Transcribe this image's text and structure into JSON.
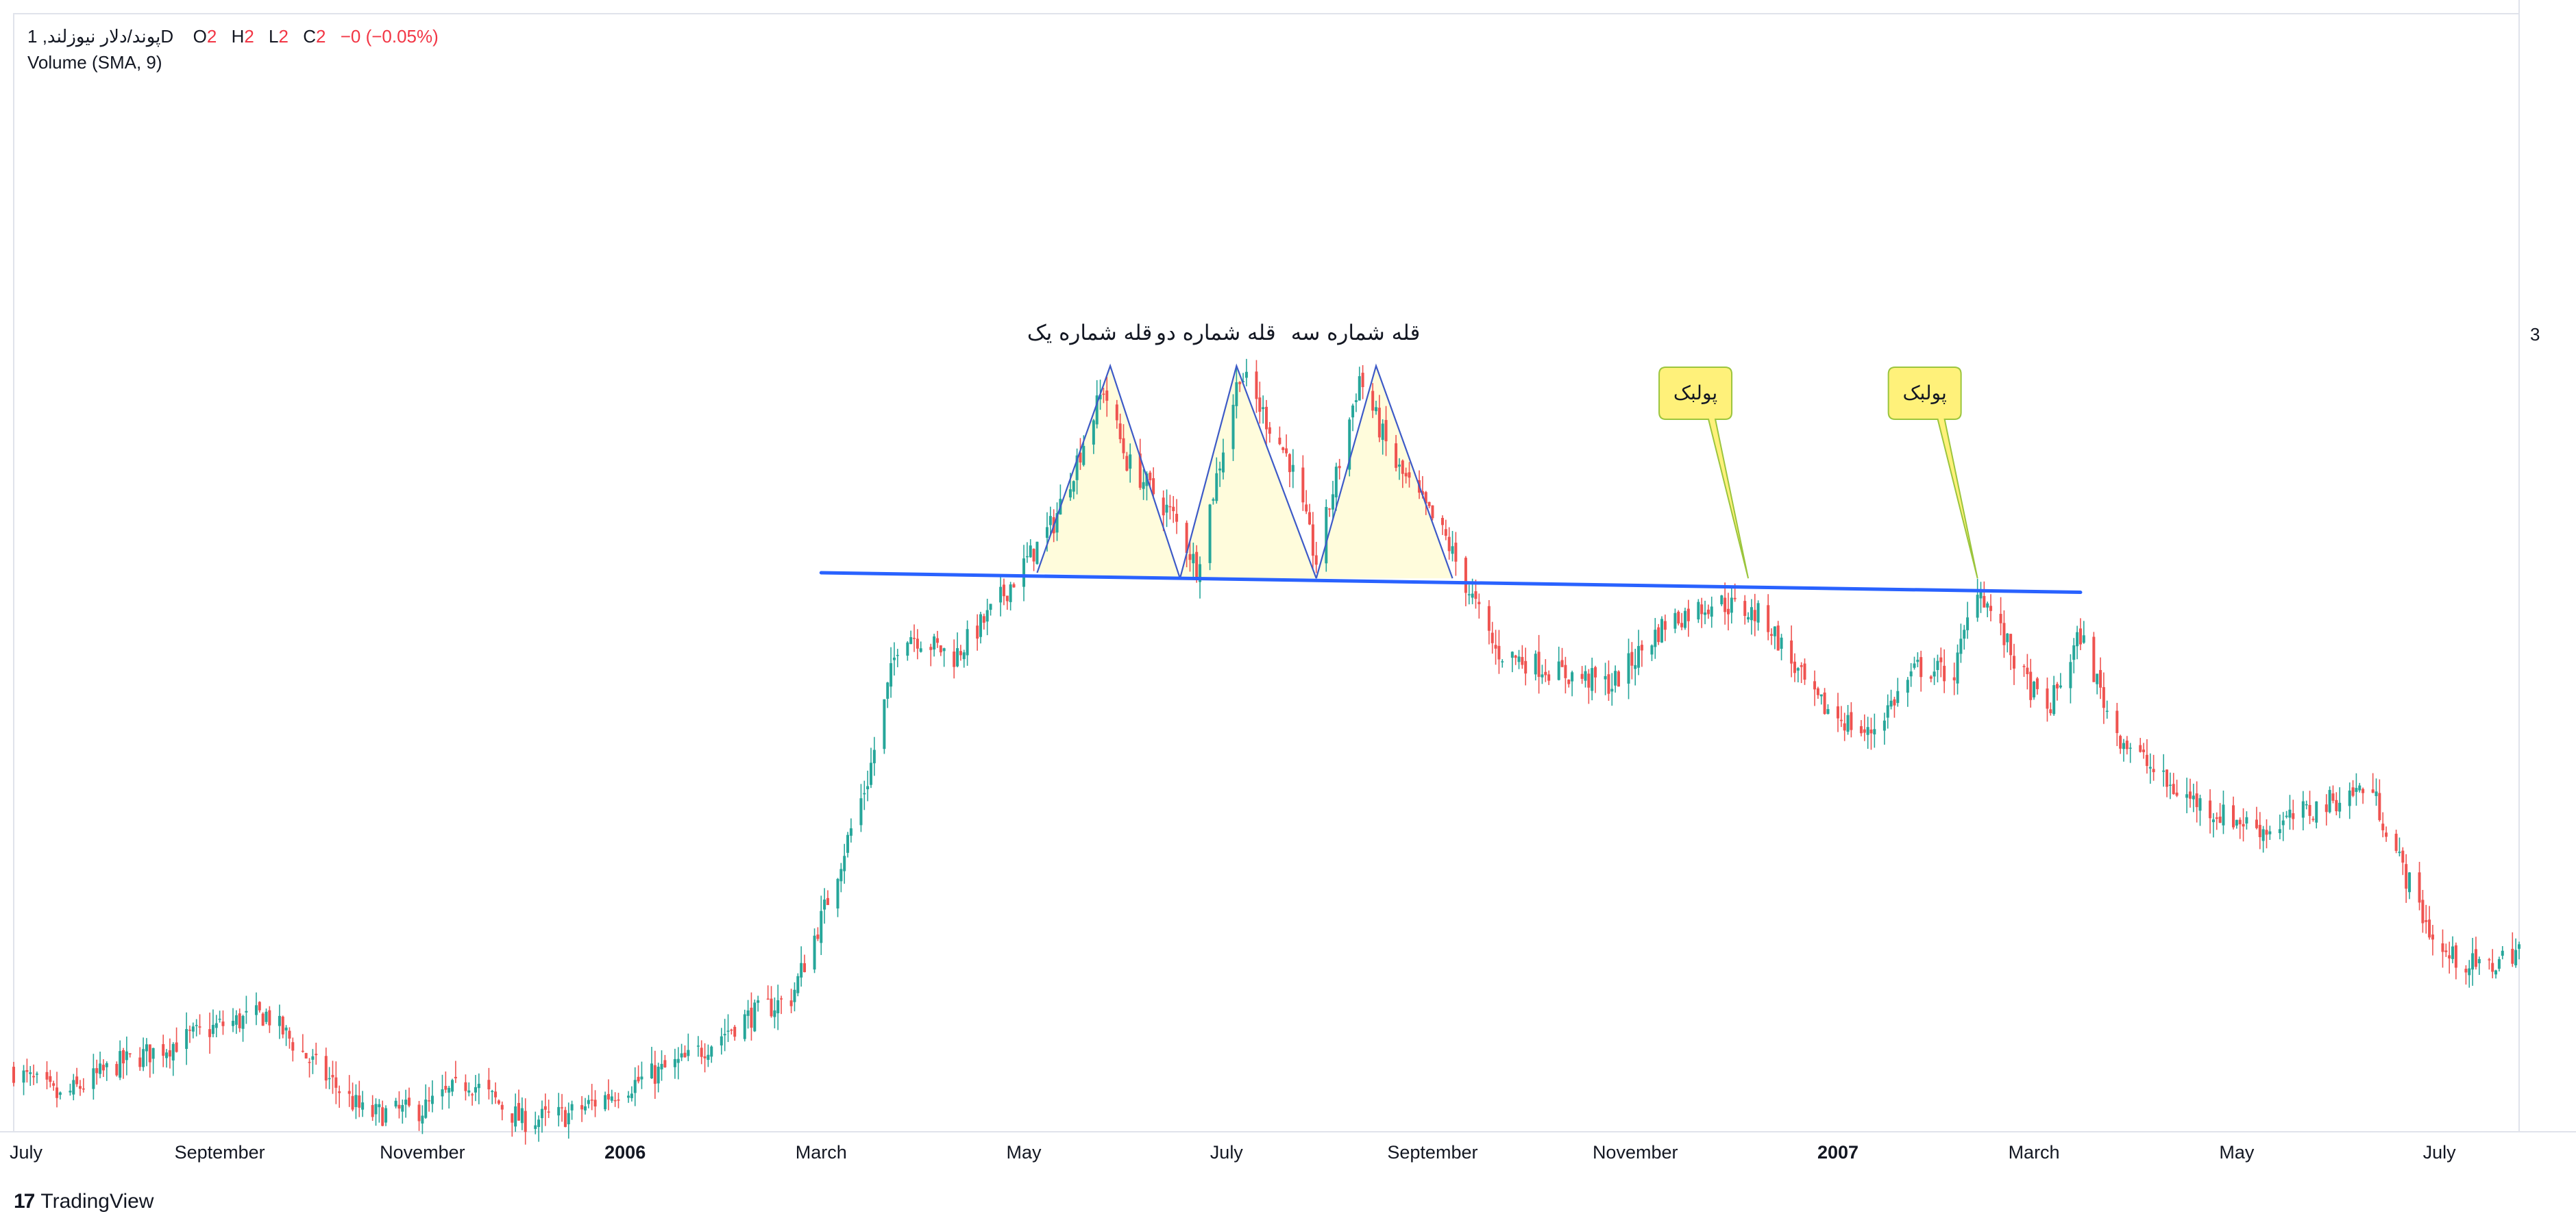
{
  "header": {
    "symbol_line": "پوند/دلار نیوزلند, 1D",
    "open_label": "O",
    "open_value": "2",
    "high_label": "H",
    "high_value": "2",
    "low_label": "L",
    "low_value": "2",
    "close_label": "C",
    "close_value": "2",
    "change": "−0 (−0.05%)",
    "indicator": "Volume (SMA, 9)"
  },
  "price_scale": {
    "label": "3"
  },
  "branding": {
    "logo": "17",
    "name": "TradingView"
  },
  "colors": {
    "up": "#26a69a",
    "down": "#ef5350",
    "neckline": "#2962ff",
    "pattern_line": "#3d5ac7",
    "pattern_fill": "#fffbd6",
    "callout_fill": "#fff17a",
    "callout_border": "#9bc53d"
  },
  "annotations": {
    "peak_1": "قله شماره یک",
    "peak_2": "قله شماره دو",
    "peak_3": "قله شماره سه",
    "pullback_1": "پولبک",
    "pullback_2": "پولبک"
  },
  "chart_data": {
    "type": "candlestick",
    "title": "پوند/دلار نیوزلند, 1D",
    "interval": "1D",
    "x_range": [
      "2005-07-01",
      "2007-07-25"
    ],
    "y_range": [
      1.0,
      3.0
    ],
    "x_tick_labels": [
      {
        "date": "2005-07-01",
        "label": "July"
      },
      {
        "date": "2005-09-01",
        "label": "September"
      },
      {
        "date": "2005-11-01",
        "label": "November"
      },
      {
        "date": "2006-01-01",
        "label": "2006",
        "bold": true
      },
      {
        "date": "2006-03-01",
        "label": "March"
      },
      {
        "date": "2006-05-01",
        "label": "May"
      },
      {
        "date": "2006-07-01",
        "label": "July"
      },
      {
        "date": "2006-09-01",
        "label": "September"
      },
      {
        "date": "2006-11-01",
        "label": "November"
      },
      {
        "date": "2007-01-01",
        "label": "2007",
        "bold": true
      },
      {
        "date": "2007-03-01",
        "label": "March"
      },
      {
        "date": "2007-05-01",
        "label": "May"
      },
      {
        "date": "2007-07-01",
        "label": "July"
      }
    ],
    "y_tick_labels": [
      {
        "value": 3,
        "label": "3"
      }
    ],
    "price_path": [
      [
        "2005-07-01",
        1.11
      ],
      [
        "2005-07-15",
        1.06
      ],
      [
        "2005-08-01",
        1.12
      ],
      [
        "2005-08-15",
        1.15
      ],
      [
        "2005-09-01",
        1.19
      ],
      [
        "2005-09-15",
        1.21
      ],
      [
        "2005-10-01",
        1.11
      ],
      [
        "2005-10-15",
        1.03
      ],
      [
        "2005-11-01",
        1.04
      ],
      [
        "2005-11-15",
        1.09
      ],
      [
        "2005-12-01",
        1.02
      ],
      [
        "2005-12-15",
        1.03
      ],
      [
        "2006-01-01",
        1.08
      ],
      [
        "2006-01-20",
        1.13
      ],
      [
        "2006-02-05",
        1.2
      ],
      [
        "2006-02-20",
        1.24
      ],
      [
        "2006-03-01",
        1.38
      ],
      [
        "2006-03-15",
        1.63
      ],
      [
        "2006-03-25",
        1.9
      ],
      [
        "2006-04-10",
        1.85
      ],
      [
        "2006-04-20",
        1.92
      ],
      [
        "2006-05-10",
        2.09
      ],
      [
        "2006-05-25",
        2.33
      ],
      [
        "2006-06-01",
        2.2
      ],
      [
        "2006-06-15",
        2.1
      ],
      [
        "2006-06-22",
        2.01
      ],
      [
        "2006-07-05",
        2.36
      ],
      [
        "2006-07-20",
        2.2
      ],
      [
        "2006-07-28",
        2.02
      ],
      [
        "2006-08-10",
        2.35
      ],
      [
        "2006-08-20",
        2.2
      ],
      [
        "2006-09-05",
        2.06
      ],
      [
        "2006-09-20",
        1.86
      ],
      [
        "2006-10-10",
        1.82
      ],
      [
        "2006-10-25",
        1.8
      ],
      [
        "2006-11-10",
        1.91
      ],
      [
        "2006-11-25",
        1.95
      ],
      [
        "2006-12-10",
        1.92
      ],
      [
        "2006-12-25",
        1.77
      ],
      [
        "2007-01-10",
        1.71
      ],
      [
        "2007-01-25",
        1.83
      ],
      [
        "2007-02-05",
        1.82
      ],
      [
        "2007-02-12",
        1.98
      ],
      [
        "2007-02-25",
        1.82
      ],
      [
        "2007-03-05",
        1.75
      ],
      [
        "2007-03-15",
        1.89
      ],
      [
        "2007-03-25",
        1.72
      ],
      [
        "2007-04-10",
        1.62
      ],
      [
        "2007-04-25",
        1.57
      ],
      [
        "2007-05-10",
        1.54
      ],
      [
        "2007-05-25",
        1.58
      ],
      [
        "2007-06-10",
        1.62
      ],
      [
        "2007-06-20",
        1.47
      ],
      [
        "2007-07-01",
        1.32
      ],
      [
        "2007-07-15",
        1.29
      ],
      [
        "2007-07-25",
        1.33
      ]
    ],
    "neckline": [
      [
        "2006-03-01",
        2.0
      ],
      [
        "2007-03-15",
        1.965
      ]
    ],
    "peaks": [
      {
        "label": "قله شماره یک",
        "points": [
          [
            "2006-05-05",
            2.0
          ],
          [
            "2006-05-27",
            2.37
          ],
          [
            "2006-06-17",
            1.99
          ]
        ]
      },
      {
        "label": "قله شماره دو",
        "points": [
          [
            "2006-06-17",
            1.99
          ],
          [
            "2006-07-04",
            2.37
          ],
          [
            "2006-07-28",
            1.99
          ]
        ]
      },
      {
        "label": "قله شماره سه",
        "points": [
          [
            "2006-07-28",
            1.99
          ],
          [
            "2006-08-15",
            2.37
          ],
          [
            "2006-09-07",
            1.99
          ]
        ]
      }
    ],
    "pullbacks": [
      {
        "label": "پولبک",
        "point": [
          "2006-12-05",
          1.99
        ]
      },
      {
        "label": "پولبک",
        "point": [
          "2007-02-12",
          1.99
        ]
      }
    ]
  }
}
